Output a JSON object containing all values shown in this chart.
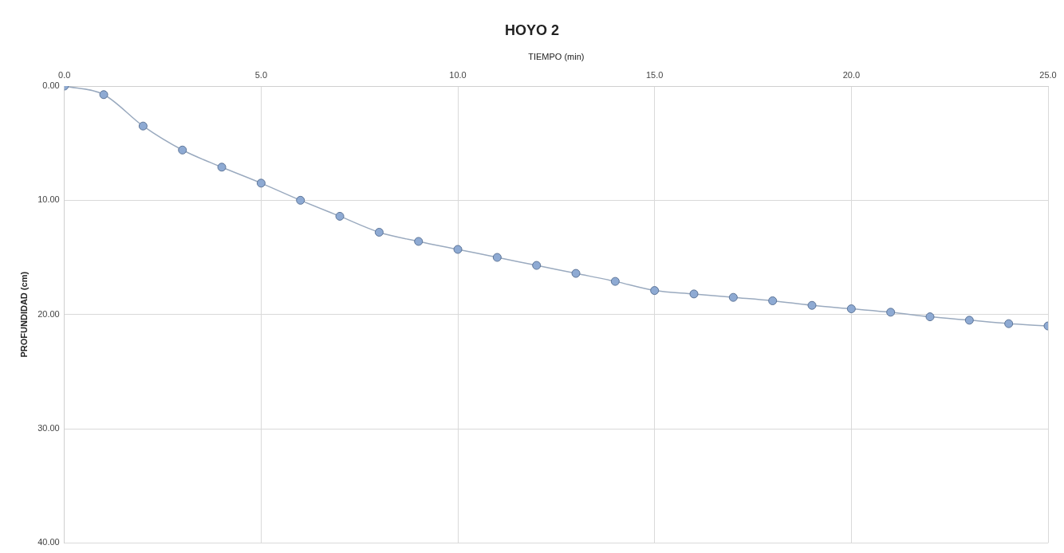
{
  "chart_data": {
    "type": "line",
    "title": "HOYO 2",
    "xlabel": "TIEMPO (min)",
    "ylabel": "PROFUNDIDAD (cm)",
    "x": [
      0,
      1,
      2,
      3,
      4,
      5,
      6,
      7,
      8,
      9,
      10,
      11,
      12,
      13,
      14,
      15,
      16,
      17,
      18,
      19,
      20,
      21,
      22,
      23,
      24,
      25
    ],
    "series": [
      {
        "color": "#8eaad3",
        "values": [
          0,
          0.75,
          3.5,
          5.6,
          7.1,
          8.5,
          10.0,
          11.4,
          12.8,
          13.6,
          14.3,
          15.0,
          15.7,
          16.4,
          17.1,
          17.9,
          18.2,
          18.5,
          18.8,
          19.2,
          19.5,
          19.8,
          20.2,
          20.5,
          20.8,
          21.0
        ]
      }
    ],
    "xlim": [
      0,
      25
    ],
    "xticks": [
      {
        "value": 0,
        "label": "0.0"
      },
      {
        "value": 5,
        "label": "5.0"
      },
      {
        "value": 10,
        "label": "10.0"
      },
      {
        "value": 15,
        "label": "15.0"
      },
      {
        "value": 20,
        "label": "20.0"
      },
      {
        "value": 25,
        "label": "25.0"
      }
    ],
    "ylim": [
      40,
      0
    ],
    "yticks": [
      {
        "value": 0,
        "label": "0.00"
      },
      {
        "value": 10,
        "label": "10.00"
      },
      {
        "value": 20,
        "label": "20.00"
      },
      {
        "value": 30,
        "label": "30.00"
      },
      {
        "value": 40,
        "label": "40.00"
      }
    ],
    "grid": true,
    "legend": false,
    "marker": "circle",
    "line_style": "solid"
  }
}
